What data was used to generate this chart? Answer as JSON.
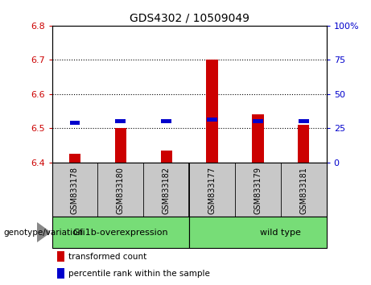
{
  "title": "GDS4302 / 10509049",
  "samples": [
    "GSM833178",
    "GSM833180",
    "GSM833182",
    "GSM833177",
    "GSM833179",
    "GSM833181"
  ],
  "red_values": [
    6.425,
    6.5,
    6.435,
    6.7,
    6.54,
    6.51
  ],
  "blue_values": [
    6.515,
    6.52,
    6.52,
    6.525,
    6.52,
    6.52
  ],
  "ylim_left": [
    6.4,
    6.8
  ],
  "ylim_right": [
    0,
    100
  ],
  "yticks_left": [
    6.4,
    6.5,
    6.6,
    6.7,
    6.8
  ],
  "yticks_right": [
    0,
    25,
    50,
    75,
    100
  ],
  "group1_label": "Gfi1b-overexpression",
  "group2_label": "wild type",
  "green_color": "#77DD77",
  "bar_bg_color": "#C8C8C8",
  "red_color": "#CC0000",
  "blue_color": "#0000CC",
  "legend_red": "transformed count",
  "legend_blue": "percentile rank within the sample",
  "genotype_label": "genotype/variation"
}
